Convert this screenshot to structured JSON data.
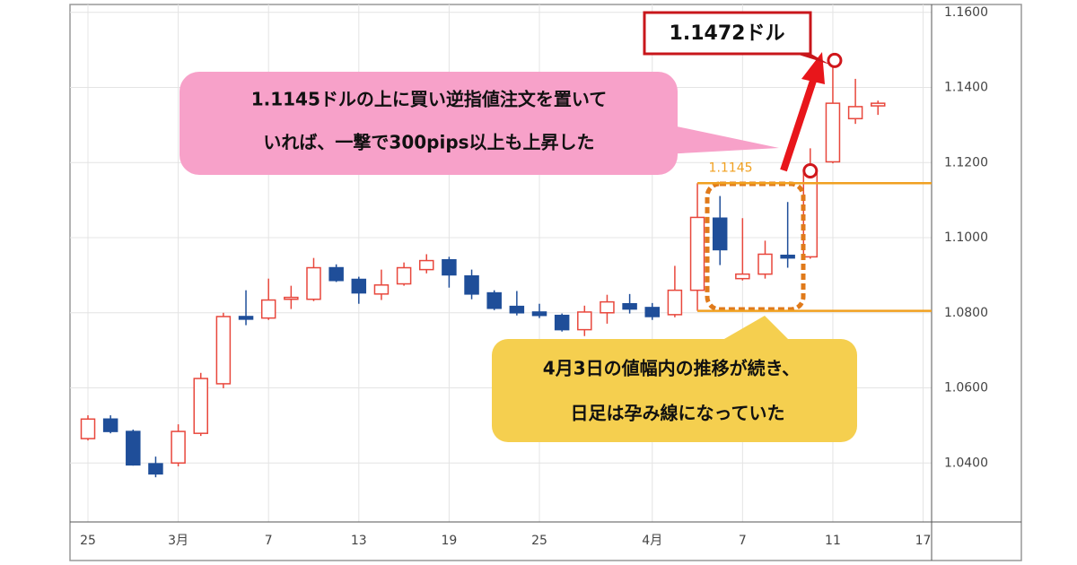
{
  "chart_data": {
    "type": "candlestick",
    "categories": [
      "25",
      null,
      null,
      null,
      "3月",
      null,
      null,
      null,
      "7",
      null,
      null,
      null,
      "13",
      null,
      null,
      null,
      "19",
      null,
      null,
      null,
      "25",
      null,
      null,
      null,
      null,
      "4月",
      null,
      null,
      null,
      "7",
      null,
      null,
      null,
      "11",
      null,
      null,
      null,
      "17"
    ],
    "series": {
      "open": [
        1.0465,
        1.0517,
        1.0484,
        1.0398,
        1.04,
        1.0479,
        1.0611,
        1.079,
        1.0786,
        1.0836,
        1.0836,
        1.092,
        1.0889,
        1.085,
        1.0877,
        1.0915,
        1.0941,
        1.0898,
        1.0853,
        1.0817,
        1.0802,
        1.0793,
        1.0755,
        1.08,
        1.0824,
        1.0814,
        1.0795,
        1.086,
        1.1052,
        1.0891,
        1.0903,
        1.0953,
        1.0949,
        1.1202,
        1.1317,
        1.1351,
        null,
        null
      ],
      "high": [
        1.0527,
        1.0527,
        1.0489,
        1.0417,
        1.0503,
        1.064,
        1.08,
        1.086,
        1.0891,
        1.0872,
        1.0946,
        1.0929,
        1.0896,
        1.0915,
        1.0934,
        1.0956,
        1.0949,
        1.0915,
        1.086,
        1.0858,
        1.0824,
        1.0798,
        1.0819,
        1.0848,
        1.085,
        1.0826,
        1.0925,
        1.1145,
        1.1111,
        1.1052,
        1.0992,
        1.1095,
        1.1238,
        1.1472,
        1.1423,
        1.1365,
        null,
        null
      ],
      "low": [
        1.046,
        1.0479,
        1.0393,
        1.0362,
        1.0391,
        1.0472,
        1.0599,
        1.0767,
        1.0781,
        1.081,
        1.0831,
        1.0882,
        1.0824,
        1.0834,
        1.0872,
        1.0905,
        1.0867,
        1.0836,
        1.0807,
        1.0793,
        1.0786,
        1.075,
        1.0738,
        1.0771,
        1.0798,
        1.0781,
        1.0788,
        1.0805,
        1.0927,
        1.0886,
        1.0891,
        1.092,
        1.0944,
        1.1198,
        1.1303,
        1.1327,
        null,
        null
      ],
      "close": [
        1.0517,
        1.0484,
        1.0395,
        1.0371,
        1.0484,
        1.0625,
        1.079,
        1.0783,
        1.0834,
        1.0841,
        1.092,
        1.0886,
        1.0853,
        1.0874,
        1.092,
        1.0939,
        1.0901,
        1.085,
        1.0812,
        1.08,
        1.0793,
        1.0755,
        1.0802,
        1.0829,
        1.081,
        1.079,
        1.086,
        1.1054,
        1.0968,
        1.0903,
        1.0956,
        1.0946,
        1.1178,
        1.1358,
        1.1349,
        1.1358,
        null,
        null
      ]
    },
    "up_color": "#e8473c",
    "down_color": "#1f4e99",
    "ylim": [
      1.0243,
      1.1621
    ],
    "yticks": [
      {
        "value": 1.04,
        "label": "1.0400"
      },
      {
        "value": 1.06,
        "label": "1.0600"
      },
      {
        "value": 1.08,
        "label": "1.0800"
      },
      {
        "value": 1.1,
        "label": "1.1000"
      },
      {
        "value": 1.12,
        "label": "1.1200"
      },
      {
        "value": 1.14,
        "label": "1.1400"
      },
      {
        "value": 1.16,
        "label": "1.1600"
      }
    ],
    "grid": true,
    "hlines": [
      {
        "value": 1.1145,
        "label": "1.1145",
        "color": "#f0a020"
      },
      {
        "value": 1.0805,
        "color": "#f0a020"
      }
    ],
    "annotations": {
      "high_label": "1.1472ドル",
      "pink_callout": [
        "1.1145ドルの上に買い逆指値注文を置いて",
        "いれば、一撃で300pips以上も上昇した"
      ],
      "yellow_callout": [
        "4月3日の値幅内の推移が続き、",
        "日足は孕み線になっていた"
      ]
    }
  }
}
